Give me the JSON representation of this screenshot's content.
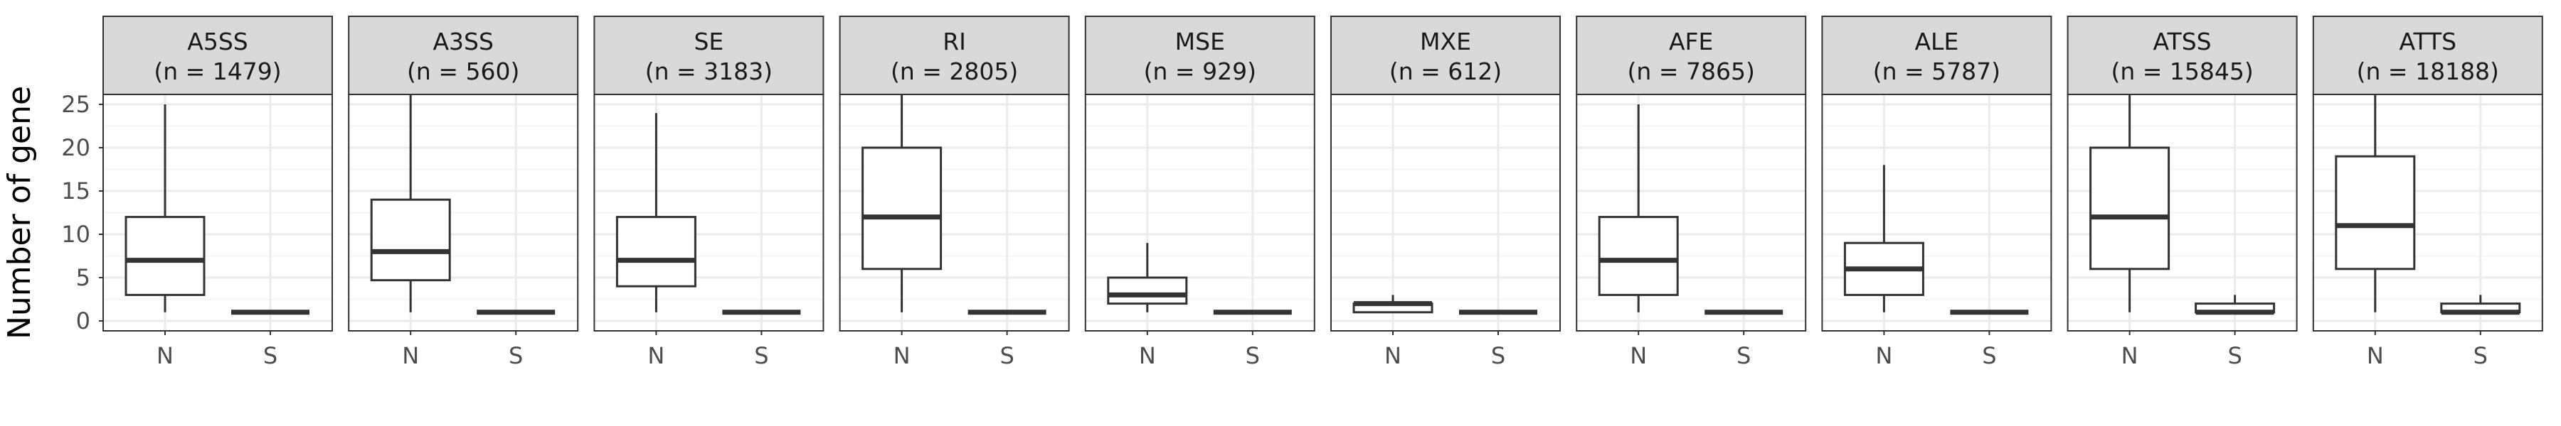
{
  "chart_data": {
    "type": "box",
    "ylabel": "Number of gene",
    "ylim": [
      -1.3,
      26.3
    ],
    "y_ticks": [
      0,
      5,
      10,
      15,
      20,
      25
    ],
    "y_tick_labels": [
      "0",
      "5",
      "10",
      "15",
      "20",
      "25"
    ],
    "x_categories": [
      "N",
      "S"
    ],
    "grid": true,
    "panels": [
      {
        "event": "A5SS",
        "count_label": "(n = 1479)",
        "boxes": [
          {
            "category": "N",
            "min": 1,
            "q1": 3,
            "median": 7,
            "q3": 12,
            "max": 25
          },
          {
            "category": "S",
            "min": 1,
            "q1": 1,
            "median": 1,
            "q3": 1,
            "max": 1
          }
        ]
      },
      {
        "event": "A3SS",
        "count_label": "(n = 560)",
        "boxes": [
          {
            "category": "N",
            "min": 1,
            "q1": 4.7,
            "median": 8,
            "q3": 14,
            "max": 26.3
          },
          {
            "category": "S",
            "min": 1,
            "q1": 1,
            "median": 1,
            "q3": 1,
            "max": 1
          }
        ]
      },
      {
        "event": "SE",
        "count_label": "(n = 3183)",
        "boxes": [
          {
            "category": "N",
            "min": 1,
            "q1": 4,
            "median": 7,
            "q3": 12,
            "max": 24
          },
          {
            "category": "S",
            "min": 1,
            "q1": 1,
            "median": 1,
            "q3": 1,
            "max": 1
          }
        ]
      },
      {
        "event": "RI",
        "count_label": "(n = 2805)",
        "boxes": [
          {
            "category": "N",
            "min": 1,
            "q1": 6,
            "median": 12,
            "q3": 20,
            "max": 26.3
          },
          {
            "category": "S",
            "min": 1,
            "q1": 1,
            "median": 1,
            "q3": 1,
            "max": 1
          }
        ]
      },
      {
        "event": "MSE",
        "count_label": "(n = 929)",
        "boxes": [
          {
            "category": "N",
            "min": 1,
            "q1": 2,
            "median": 3,
            "q3": 5,
            "max": 9
          },
          {
            "category": "S",
            "min": 1,
            "q1": 1,
            "median": 1,
            "q3": 1,
            "max": 1
          }
        ]
      },
      {
        "event": "MXE",
        "count_label": "(n = 612)",
        "boxes": [
          {
            "category": "N",
            "min": 1,
            "q1": 1,
            "median": 2,
            "q3": 2,
            "max": 3
          },
          {
            "category": "S",
            "min": 1,
            "q1": 1,
            "median": 1,
            "q3": 1,
            "max": 1
          }
        ]
      },
      {
        "event": "AFE",
        "count_label": "(n = 7865)",
        "boxes": [
          {
            "category": "N",
            "min": 1,
            "q1": 3,
            "median": 7,
            "q3": 12,
            "max": 25
          },
          {
            "category": "S",
            "min": 1,
            "q1": 1,
            "median": 1,
            "q3": 1,
            "max": 1
          }
        ]
      },
      {
        "event": "ALE",
        "count_label": "(n = 5787)",
        "boxes": [
          {
            "category": "N",
            "min": 1,
            "q1": 3,
            "median": 6,
            "q3": 9,
            "max": 18
          },
          {
            "category": "S",
            "min": 1,
            "q1": 1,
            "median": 1,
            "q3": 1,
            "max": 1
          }
        ]
      },
      {
        "event": "ATSS",
        "count_label": "(n = 15845)",
        "boxes": [
          {
            "category": "N",
            "min": 1,
            "q1": 6,
            "median": 12,
            "q3": 20,
            "max": 26.3
          },
          {
            "category": "S",
            "min": 1,
            "q1": 1,
            "median": 1,
            "q3": 2,
            "max": 3
          }
        ]
      },
      {
        "event": "ATTS",
        "count_label": "(n = 18188)",
        "boxes": [
          {
            "category": "N",
            "min": 1,
            "q1": 6,
            "median": 11,
            "q3": 19,
            "max": 26.3
          },
          {
            "category": "S",
            "min": 1,
            "q1": 1,
            "median": 1,
            "q3": 2,
            "max": 3
          }
        ]
      }
    ],
    "colors": {
      "strip_fill": "#d9d9d9",
      "border": "#333333",
      "grid_major": "#ebebeb",
      "grid_minor": "#f5f5f5",
      "box_fill": "#ffffff",
      "box_line": "#333333",
      "tick_text": "#4d4d4d",
      "axis_title": "#000000"
    }
  }
}
